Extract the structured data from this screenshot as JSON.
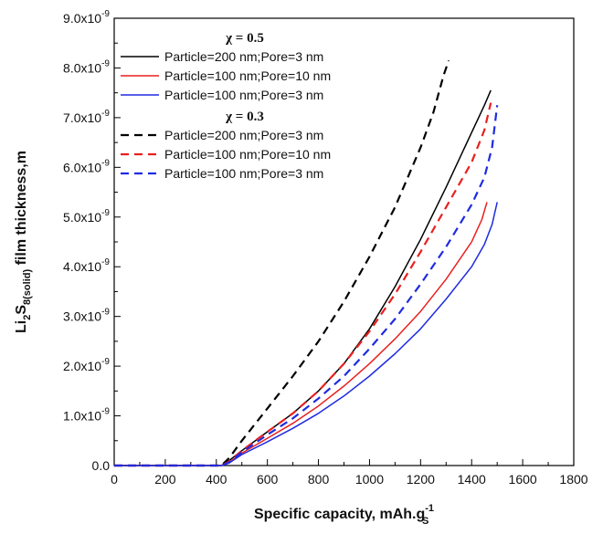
{
  "chart_data": {
    "type": "line",
    "xlabel": "Specific capacity, mAh.g",
    "xlabel_sup": "-1",
    "xlabel_sub": "S",
    "ylabel_main": "Li",
    "ylabel_sub1": "2",
    "ylabel_s": "S",
    "ylabel_sub2": "8(solid)",
    "ylabel_rest": " film thickness,m",
    "xlim": [
      0,
      1800
    ],
    "ylim": [
      0,
      9e-09
    ],
    "x_ticks": [
      0,
      200,
      400,
      600,
      800,
      1000,
      1200,
      1400,
      1600,
      1800
    ],
    "y_ticks": [
      {
        "value": 0,
        "mant": "0.0",
        "exp": ""
      },
      {
        "value": 1e-09,
        "mant": "1.0x10",
        "exp": "-9"
      },
      {
        "value": 2e-09,
        "mant": "2.0x10",
        "exp": "-9"
      },
      {
        "value": 3e-09,
        "mant": "3.0x10",
        "exp": "-9"
      },
      {
        "value": 4e-09,
        "mant": "4.0x10",
        "exp": "-9"
      },
      {
        "value": 5e-09,
        "mant": "5.0x10",
        "exp": "-9"
      },
      {
        "value": 6e-09,
        "mant": "6.0x10",
        "exp": "-9"
      },
      {
        "value": 7e-09,
        "mant": "7.0x10",
        "exp": "-9"
      },
      {
        "value": 8e-09,
        "mant": "8.0x10",
        "exp": "-9"
      },
      {
        "value": 9e-09,
        "mant": "9.0x10",
        "exp": "-9"
      }
    ],
    "legend_groups": [
      {
        "title": "χ = 0.5",
        "series_indices": [
          0,
          1,
          2
        ]
      },
      {
        "title": "χ = 0.3",
        "series_indices": [
          3,
          4,
          5
        ]
      }
    ],
    "series": [
      {
        "name": "Particle=200 nm;Pore=3 nm",
        "color": "#000000",
        "dash": "solid",
        "x": [
          0,
          420,
          450,
          500,
          600,
          700,
          800,
          900,
          1000,
          1100,
          1200,
          1300,
          1400,
          1450,
          1475
        ],
        "y": [
          0,
          0,
          1e-10,
          3e-10,
          6.8e-10,
          1.05e-09,
          1.5e-09,
          2.05e-09,
          2.75e-09,
          3.6e-09,
          4.55e-09,
          5.6e-09,
          6.7e-09,
          7.25e-09,
          7.55e-09
        ]
      },
      {
        "name": "Particle=100 nm;Pore=10 nm",
        "color": "#e8201f",
        "dash": "solid",
        "x": [
          0,
          420,
          450,
          500,
          600,
          700,
          800,
          900,
          1000,
          1100,
          1200,
          1300,
          1400,
          1440,
          1460
        ],
        "y": [
          0,
          0,
          6e-11,
          2.5e-10,
          5.5e-10,
          8.5e-10,
          1.2e-09,
          1.6e-09,
          2.05e-09,
          2.55e-09,
          3.1e-09,
          3.75e-09,
          4.5e-09,
          4.95e-09,
          5.3e-09
        ]
      },
      {
        "name": "Particle=100 nm;Pore=3 nm",
        "color": "#1f2be0",
        "dash": "solid",
        "x": [
          0,
          420,
          450,
          500,
          600,
          700,
          800,
          900,
          1000,
          1100,
          1200,
          1300,
          1400,
          1450,
          1480,
          1500
        ],
        "y": [
          0,
          0,
          5e-11,
          2.2e-10,
          4.8e-10,
          7.5e-10,
          1.05e-09,
          1.4e-09,
          1.8e-09,
          2.25e-09,
          2.75e-09,
          3.35e-09,
          4e-09,
          4.45e-09,
          4.85e-09,
          5.3e-09
        ]
      },
      {
        "name": "Particle=200 nm;Pore=3 nm",
        "color": "#000000",
        "dash": "dashed",
        "x": [
          0,
          420,
          450,
          500,
          600,
          700,
          800,
          900,
          1000,
          1100,
          1200,
          1250,
          1290,
          1310
        ],
        "y": [
          0,
          0,
          1.5e-10,
          5e-10,
          1.15e-09,
          1.8e-09,
          2.5e-09,
          3.3e-09,
          4.2e-09,
          5.2e-09,
          6.4e-09,
          7.1e-09,
          7.85e-09,
          8.15e-09
        ]
      },
      {
        "name": "Particle=100 nm;Pore=10 nm",
        "color": "#e8201f",
        "dash": "dashed",
        "x": [
          0,
          420,
          450,
          500,
          600,
          700,
          800,
          900,
          1000,
          1100,
          1200,
          1300,
          1400,
          1450,
          1475
        ],
        "y": [
          0,
          0,
          8e-11,
          3e-10,
          6.8e-10,
          1.05e-09,
          1.5e-09,
          2.05e-09,
          2.7e-09,
          3.45e-09,
          4.3e-09,
          5.2e-09,
          6.1e-09,
          6.75e-09,
          7.3e-09
        ]
      },
      {
        "name": "Particle=100 nm;Pore=3 nm",
        "color": "#1f2be0",
        "dash": "dashed",
        "x": [
          0,
          420,
          450,
          500,
          600,
          700,
          800,
          900,
          1000,
          1100,
          1200,
          1300,
          1400,
          1450,
          1480,
          1500
        ],
        "y": [
          0,
          0,
          6e-11,
          2.7e-10,
          6.2e-10,
          9.5e-10,
          1.35e-09,
          1.8e-09,
          2.35e-09,
          2.95e-09,
          3.65e-09,
          4.4e-09,
          5.25e-09,
          5.8e-09,
          6.4e-09,
          7.25e-09
        ]
      }
    ]
  }
}
